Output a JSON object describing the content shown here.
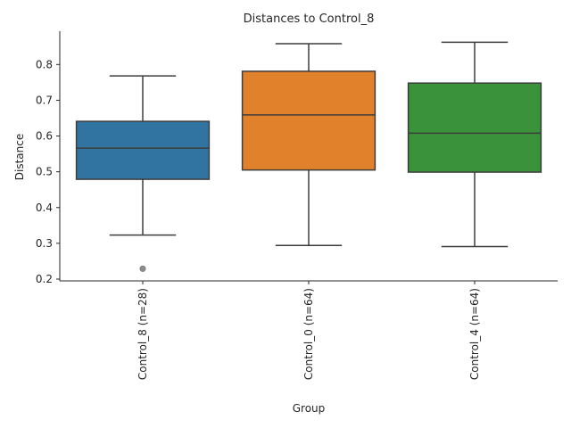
{
  "chart_data": {
    "type": "box",
    "title": "Distances to Control_8",
    "xlabel": "Group",
    "ylabel": "Distance",
    "ylim": [
      0.195,
      0.893
    ],
    "yticks": [
      0.2,
      0.3,
      0.4,
      0.5,
      0.6,
      0.7,
      0.8
    ],
    "ytick_labels": [
      "0.2",
      "0.3",
      "0.4",
      "0.5",
      "0.6",
      "0.7",
      "0.8"
    ],
    "grid": false,
    "categories": [
      "Control_8 (n=28)",
      "Control_0 (n=64)",
      "Control_4 (n=64)"
    ],
    "boxes": [
      {
        "label": "Control_8 (n=28)",
        "color": "#3274a1",
        "whisker_low": 0.323,
        "q1": 0.479,
        "median": 0.566,
        "q3": 0.641,
        "whisker_high": 0.768,
        "outliers": [
          0.229
        ]
      },
      {
        "label": "Control_0 (n=64)",
        "color": "#e1812c",
        "whisker_low": 0.294,
        "q1": 0.505,
        "median": 0.659,
        "q3": 0.781,
        "whisker_high": 0.858,
        "outliers": []
      },
      {
        "label": "Control_4 (n=64)",
        "color": "#3a923a",
        "whisker_low": 0.291,
        "q1": 0.499,
        "median": 0.608,
        "q3": 0.748,
        "whisker_high": 0.862,
        "outliers": []
      }
    ],
    "line_color": "#3d3d3d",
    "outlier_color": "#8c8c8c"
  }
}
